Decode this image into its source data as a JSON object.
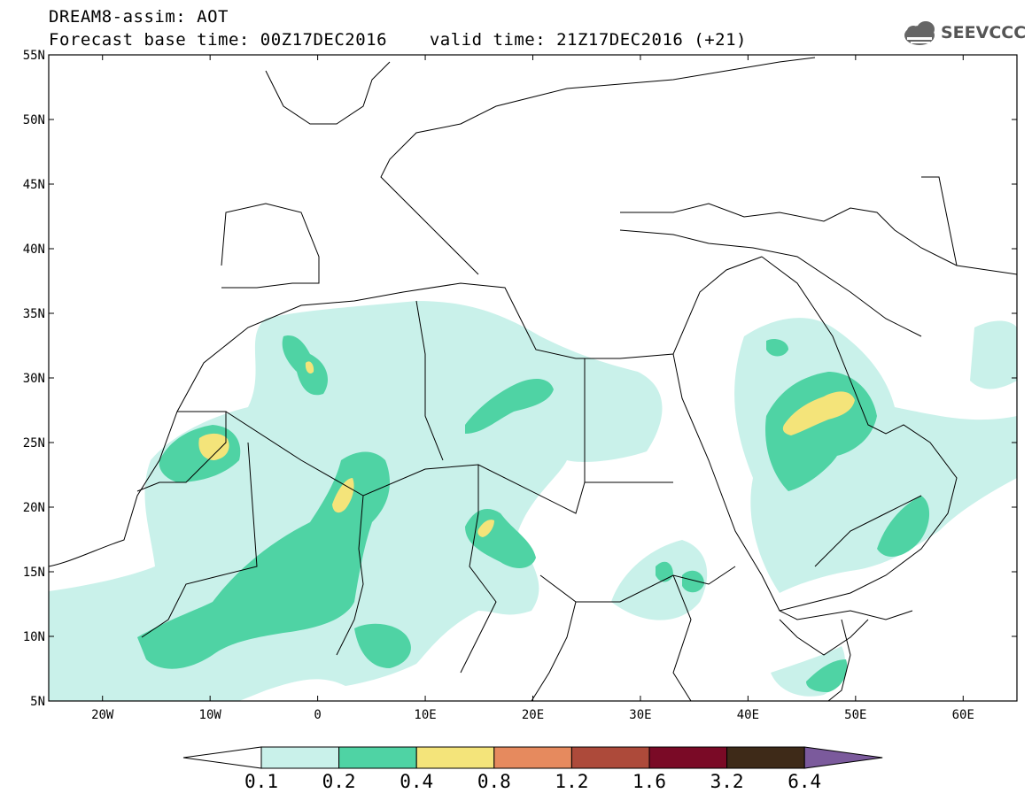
{
  "header": {
    "title": "DREAM8-assim: AOT",
    "base_time_label": "Forecast base time: 00Z17DEC2016",
    "valid_time_label": "valid time: 21Z17DEC2016 (+21)"
  },
  "logo": {
    "text": "SEEVCCC",
    "icon": "cloud-icon"
  },
  "map": {
    "lat_ticks": [
      "55N",
      "50N",
      "45N",
      "40N",
      "35N",
      "30N",
      "25N",
      "20N",
      "15N",
      "10N",
      "5N"
    ],
    "lon_ticks": [
      "20W",
      "10W",
      "0",
      "10E",
      "20E",
      "30E",
      "40E",
      "50E",
      "60E"
    ],
    "lat_range": [
      5,
      55
    ],
    "lon_range": [
      -25,
      65
    ]
  },
  "legend": {
    "levels": [
      "0.1",
      "0.2",
      "0.4",
      "0.8",
      "1.2",
      "1.6",
      "3.2",
      "6.4"
    ],
    "colors": [
      "#ffffff",
      "#c9f1ea",
      "#4fd3a4",
      "#f4e47a",
      "#e68a5e",
      "#ad4a3a",
      "#7a0a26",
      "#3e2a18",
      "#7b5a9c"
    ]
  }
}
